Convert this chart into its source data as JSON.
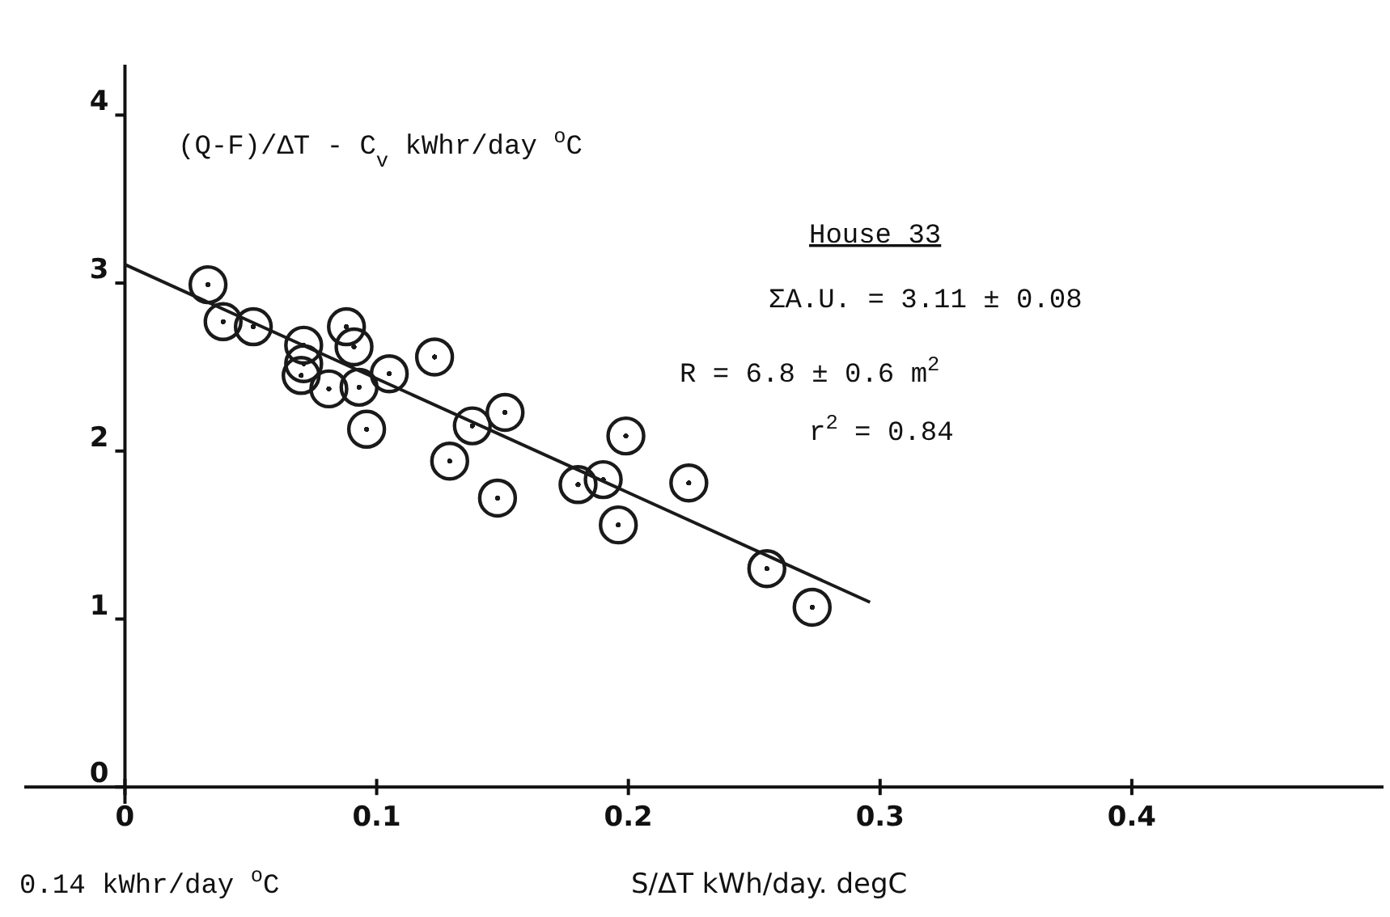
{
  "chart_data": {
    "type": "scatter",
    "ylabel": "(Q-F)/ΔT - C$_{v}$   kWhr/day $^{o}$C",
    "xlabel": "S/ΔT   kWh/day. degC",
    "xlim": [
      -0.04,
      0.5
    ],
    "xticks": [
      0,
      0.1,
      0.2,
      0.3,
      0.4
    ],
    "ylim": [
      -0.1,
      4.3
    ],
    "yticks": [
      0,
      1,
      2,
      3,
      4
    ],
    "grid": false,
    "marker": "circle",
    "series": [
      {
        "color": "#1a1a1a",
        "x": [
          0.033,
          0.039,
          0.051,
          0.071,
          0.071,
          0.07,
          0.088,
          0.091,
          0.081,
          0.093,
          0.105,
          0.123,
          0.096,
          0.138,
          0.151,
          0.129,
          0.148,
          0.199,
          0.18,
          0.19,
          0.196,
          0.224,
          0.255,
          0.273
        ],
        "values": [
          2.99,
          2.77,
          2.74,
          2.63,
          2.52,
          2.45,
          2.74,
          2.62,
          2.37,
          2.38,
          2.46,
          2.56,
          2.13,
          2.15,
          2.23,
          1.94,
          1.72,
          2.09,
          1.8,
          1.83,
          1.56,
          1.81,
          1.3,
          1.07
        ]
      },
      {
        "type": "line",
        "marker": "none",
        "color": "#1a1a1a",
        "x": [
          0,
          0.296
        ],
        "values": [
          3.11,
          1.1
        ]
      }
    ],
    "annotations": [
      "House 33",
      "ΣA.U. = 3.11 ± 0.08",
      "R = 6.8 ± 0.6 m$^{2}$",
      "r$^{2}$ = 0.84",
      "0.14  kWhr/day $^{o}$C"
    ]
  }
}
